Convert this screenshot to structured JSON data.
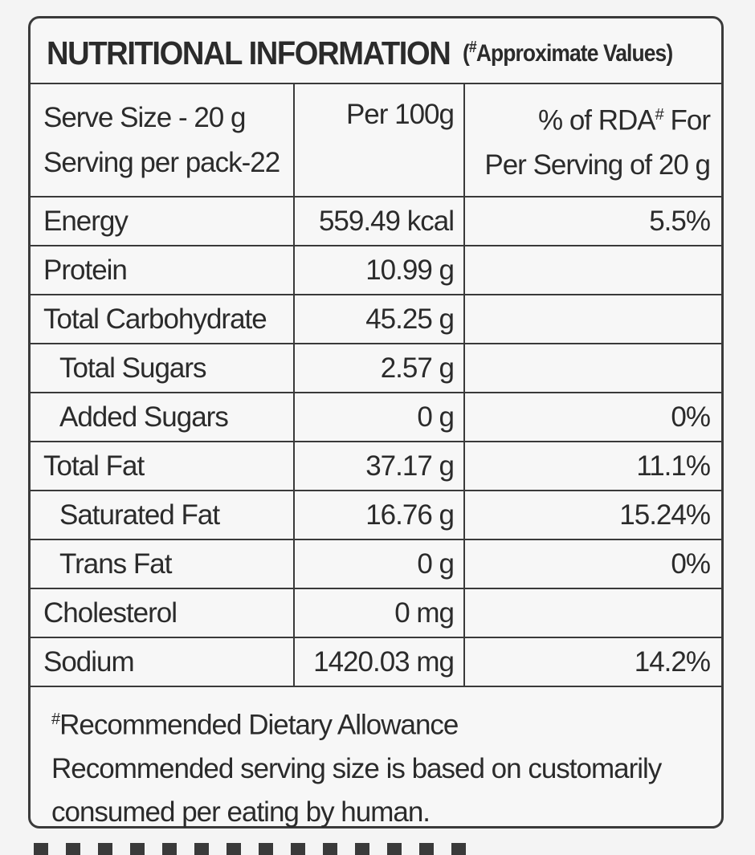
{
  "title": {
    "main": "NUTRITIONAL INFORMATION",
    "note_open": "(",
    "note_mark": "#",
    "note_text": "Approximate Values)"
  },
  "header": {
    "serve_size": "Serve Size - 20 g",
    "serving_per_pack": "Serving per pack-22",
    "per_100g": "Per 100g",
    "rda_line1_prefix": "% of RDA",
    "rda_mark": "#",
    "rda_line1_suffix": " For",
    "rda_line2": "Per Serving of 20 g"
  },
  "rows": [
    {
      "name": "Energy",
      "per100g": "559.49 kcal",
      "rda": "5.5%"
    },
    {
      "name": "Protein",
      "per100g": "10.99 g",
      "rda": ""
    },
    {
      "name": "Total Carbohydrate",
      "per100g": "45.25 g",
      "rda": ""
    },
    {
      "name": "Total Sugars",
      "per100g": "2.57 g",
      "rda": ""
    },
    {
      "name": "Added Sugars",
      "per100g": "0 g",
      "rda": "0%"
    },
    {
      "name": "Total Fat",
      "per100g": "37.17 g",
      "rda": "11.1%"
    },
    {
      "name": "Saturated Fat",
      "per100g": "16.76 g",
      "rda": "15.24%"
    },
    {
      "name": "Trans Fat",
      "per100g": "0 g",
      "rda": "0%"
    },
    {
      "name": "Cholesterol",
      "per100g": "0 mg",
      "rda": ""
    },
    {
      "name": "Sodium",
      "per100g": "1420.03 mg",
      "rda": "14.2%"
    }
  ],
  "footer": {
    "mark": "#",
    "rda_definition": "Recommended Dietary Allowance",
    "note_line1": "Recommended serving size is based on customarily",
    "note_line2": "consumed per eating by human."
  }
}
